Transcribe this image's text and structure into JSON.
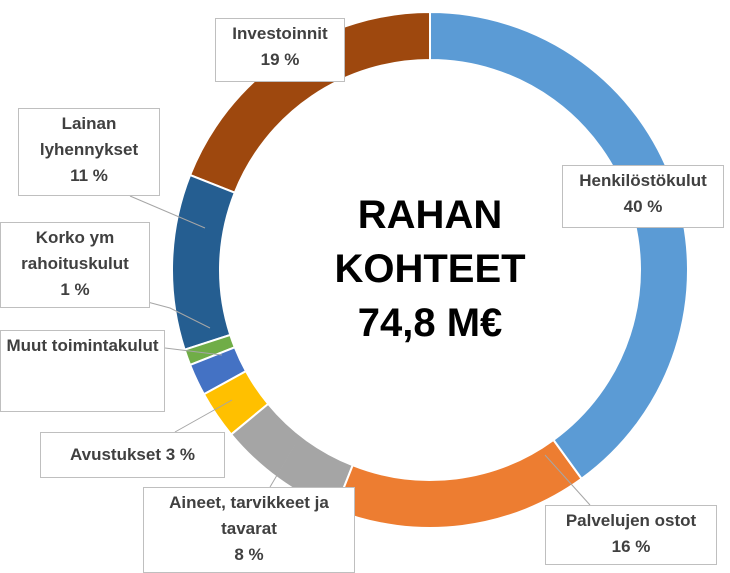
{
  "chart_data": {
    "type": "donut",
    "title_lines": [
      "RAHAN",
      "KOHTEET",
      "74,8 M€"
    ],
    "categories": [
      "Henkilöstökulut",
      "Palvelujen ostot",
      "Aineet, tarvikkeet ja tavarat",
      "Avustukset",
      "Muut toimintakulut",
      "Korko ym rahoituskulut",
      "Lainan lyhennykset",
      "Investoinnit"
    ],
    "values": [
      40,
      16,
      8,
      3,
      2,
      1,
      11,
      19
    ],
    "value_labels": [
      "40 %",
      "16 %",
      "8 %",
      "3 %",
      null,
      "1 %",
      "11 %",
      "19 %"
    ],
    "colors": [
      "#5b9bd5",
      "#ed7d31",
      "#a5a5a5",
      "#ffc000",
      "#4472c4",
      "#70ad47",
      "#255e91",
      "#9e480e"
    ]
  }
}
